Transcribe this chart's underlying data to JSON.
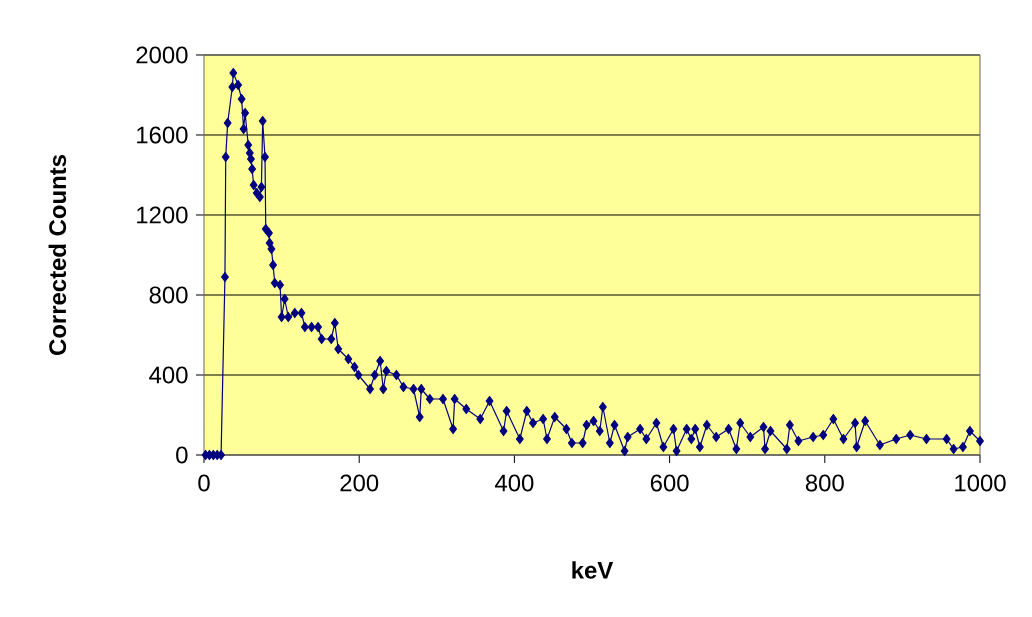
{
  "chart_data": {
    "type": "line",
    "xlabel": "keV",
    "ylabel": "Corrected Counts",
    "x": [
      2,
      7,
      12,
      17,
      22,
      27,
      28,
      30.5,
      36.5,
      37.8,
      44,
      48.5,
      51,
      53,
      57,
      59,
      60.5,
      62,
      64,
      68,
      72,
      74,
      75.6,
      78.6,
      79.6,
      83.7,
      84.6,
      86.9,
      89,
      91.2,
      98,
      100,
      104,
      108.6,
      117,
      125.6,
      130,
      138.6,
      147,
      151.6,
      164,
      168.6,
      173,
      186,
      194,
      199,
      214,
      220,
      227,
      231,
      235,
      248,
      257,
      270,
      278,
      280,
      291,
      308,
      321,
      323,
      338,
      356,
      368,
      386,
      390,
      407,
      416,
      424,
      437,
      442,
      452,
      467,
      474,
      488,
      493,
      502,
      510,
      514,
      523,
      529,
      542,
      546,
      562,
      570,
      583,
      592,
      605,
      609,
      622,
      628,
      633,
      639,
      648,
      660,
      676,
      686,
      691,
      704,
      721,
      723,
      730,
      751,
      755,
      766,
      785,
      798,
      811,
      824,
      839,
      841,
      852,
      871,
      892,
      910,
      931,
      957,
      966,
      978,
      987,
      1000
    ],
    "series": [
      {
        "color": "#000080",
        "values": [
          0,
          0,
          0,
          0,
          0,
          890,
          1490,
          1660,
          1840,
          1910,
          1850,
          1780,
          1630,
          1710,
          1550,
          1510,
          1480,
          1430,
          1350,
          1310,
          1290,
          1340,
          1670,
          1490,
          1130,
          1110,
          1060,
          1030,
          950,
          860,
          850,
          690,
          780,
          690,
          710,
          710,
          640,
          640,
          640,
          580,
          580,
          660,
          530,
          480,
          440,
          400,
          330,
          400,
          470,
          330,
          420,
          400,
          340,
          330,
          190,
          330,
          280,
          280,
          130,
          280,
          230,
          180,
          270,
          120,
          220,
          80,
          220,
          160,
          180,
          80,
          190,
          130,
          60,
          60,
          150,
          170,
          120,
          240,
          60,
          150,
          20,
          90,
          130,
          80,
          160,
          40,
          130,
          20,
          130,
          80,
          130,
          40,
          150,
          90,
          130,
          30,
          160,
          90,
          140,
          30,
          120,
          30,
          150,
          70,
          90,
          100,
          180,
          80,
          160,
          40,
          170,
          50,
          80,
          100,
          80,
          80,
          30,
          40,
          120,
          70
        ]
      }
    ],
    "xlim": [
      0,
      1000
    ],
    "ylim": [
      0,
      2000
    ],
    "xticks": [
      0,
      200,
      400,
      600,
      800,
      1000
    ],
    "yticks": [
      0,
      400,
      800,
      1200,
      1600,
      2000
    ],
    "grid": "y",
    "marker": "diamond",
    "line_style": "solid"
  }
}
